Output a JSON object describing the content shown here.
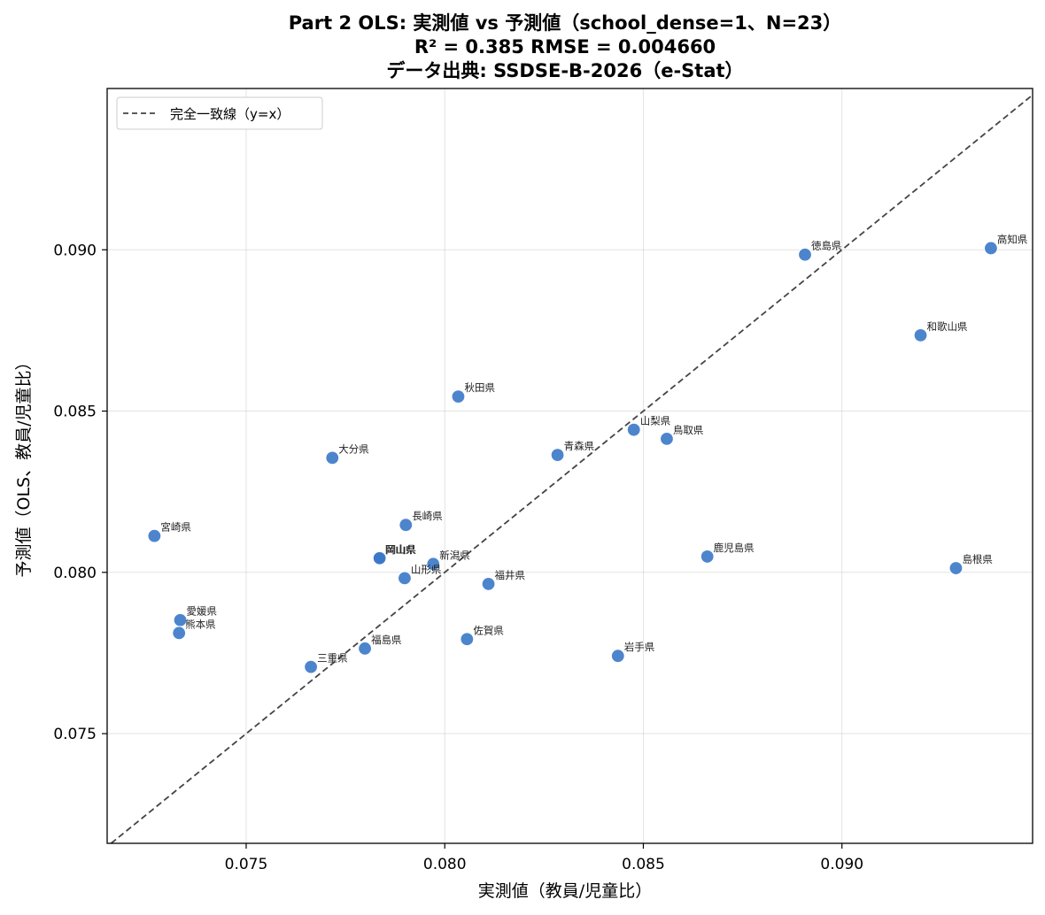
{
  "chart_data": {
    "type": "scatter",
    "title_lines": [
      "Part 2 OLS: 実測値 vs 予測値（school_dense=1、N=23）",
      "R² = 0.385  RMSE = 0.004660",
      "データ出典: SSDSE-B-2026（e-Stat）"
    ],
    "xlabel": "実測値（教員/児童比）",
    "ylabel": "予測値（OLS、教員/児童比）",
    "xlim": [
      0.0715,
      0.0948
    ],
    "ylim": [
      0.0716,
      0.095
    ],
    "xticks": [
      0.075,
      0.08,
      0.085,
      0.09
    ],
    "yticks": [
      0.075,
      0.08,
      0.085,
      0.09
    ],
    "tick_format": 3,
    "grid": true,
    "legend": {
      "position": "top-left",
      "entries": [
        "完全一致線（y=x）"
      ]
    },
    "point_color": "#3a78c8",
    "line_color": "#444444",
    "points": [
      {
        "label": "高知県",
        "x": 0.09375,
        "y": 0.09005
      },
      {
        "label": "徳島県",
        "x": 0.08907,
        "y": 0.08985
      },
      {
        "label": "和歌山県",
        "x": 0.09198,
        "y": 0.08735
      },
      {
        "label": "秋田県",
        "x": 0.08034,
        "y": 0.08545
      },
      {
        "label": "山梨県",
        "x": 0.08476,
        "y": 0.08442
      },
      {
        "label": "鳥取県",
        "x": 0.08559,
        "y": 0.08414
      },
      {
        "label": "青森県",
        "x": 0.08284,
        "y": 0.08364
      },
      {
        "label": "大分県",
        "x": 0.07717,
        "y": 0.08355
      },
      {
        "label": "長崎県",
        "x": 0.07902,
        "y": 0.08147
      },
      {
        "label": "宮崎県",
        "x": 0.07269,
        "y": 0.08113
      },
      {
        "label": "岡山県",
        "x": 0.07834,
        "y": 0.08043
      },
      {
        "label": "岡山県",
        "x": 0.07836,
        "y": 0.08044
      },
      {
        "label": "新潟県",
        "x": 0.07971,
        "y": 0.08026
      },
      {
        "label": "山形県",
        "x": 0.07899,
        "y": 0.07982
      },
      {
        "label": "福井県",
        "x": 0.0811,
        "y": 0.07964
      },
      {
        "label": "鹿児島県",
        "x": 0.08661,
        "y": 0.08049
      },
      {
        "label": "島根県",
        "x": 0.09287,
        "y": 0.08013
      },
      {
        "label": "愛媛県",
        "x": 0.07334,
        "y": 0.07852
      },
      {
        "label": "熊本県",
        "x": 0.07331,
        "y": 0.07812
      },
      {
        "label": "佐賀県",
        "x": 0.08056,
        "y": 0.07793
      },
      {
        "label": "福島県",
        "x": 0.07799,
        "y": 0.07764
      },
      {
        "label": "三重県",
        "x": 0.07663,
        "y": 0.07707
      },
      {
        "label": "岩手県",
        "x": 0.08436,
        "y": 0.07741
      }
    ]
  }
}
